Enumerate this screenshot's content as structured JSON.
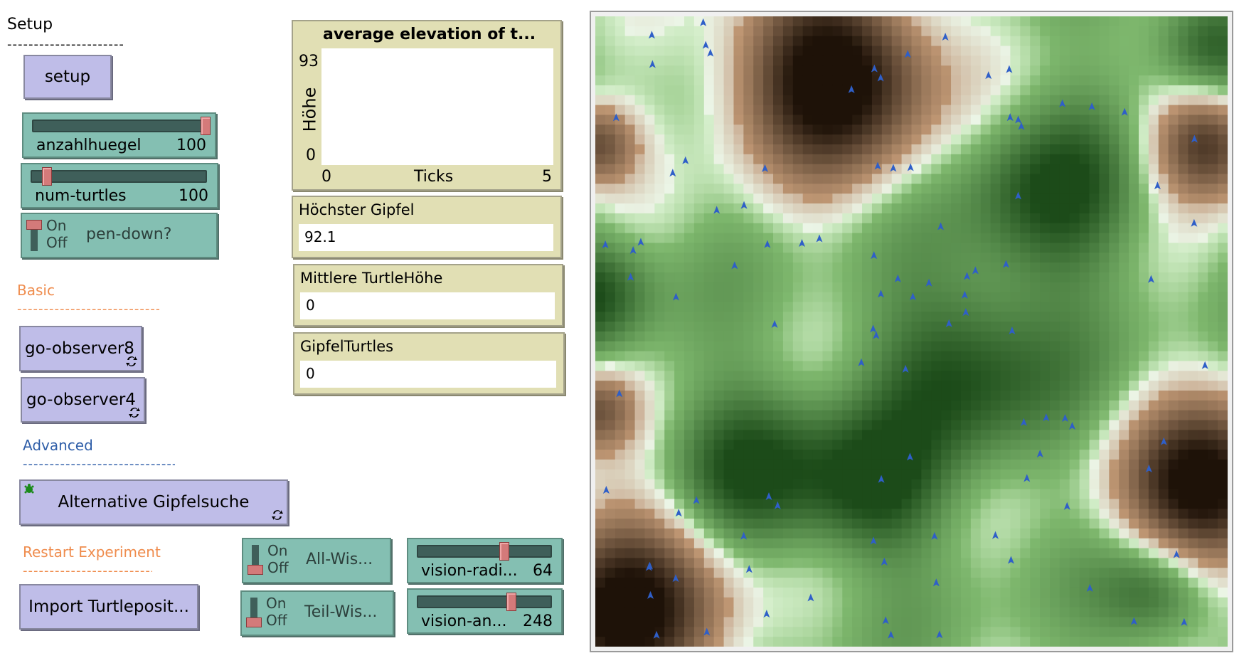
{
  "notes": {
    "setup": "Setup",
    "setup_rule": "----------------------",
    "basic": "Basic",
    "basic_rule": "----------------------------",
    "advanced": "Advanced",
    "advanced_rule": "------------------------------",
    "restart": "Restart Experiment",
    "restart_rule": "-------------------------"
  },
  "note_colors": {
    "basic": "#ef8c4d",
    "advanced": "#2f5ea8",
    "restart": "#ef8c4d"
  },
  "buttons": {
    "setup": "setup",
    "go_observer8": "go-observer8",
    "go_observer4": "go-observer4",
    "alt_gipfelsuche": "Alternative Gipfelsuche",
    "import_turtles": "Import Turtleposit..."
  },
  "sliders": {
    "anzahlhuegel": {
      "name": "anzahlhuegel",
      "value": "100",
      "level": 1.0
    },
    "num_turtles": {
      "name": "num-turtles",
      "value": "100",
      "level": 0.05
    },
    "vision_radius": {
      "name": "vision-radi...",
      "value": "64",
      "level": 0.64
    },
    "vision_angle": {
      "name": "vision-an...",
      "value": "248",
      "level": 0.69
    }
  },
  "switches": {
    "pen_down": {
      "on": "On",
      "off": "Off",
      "name": "pen-down?",
      "state": "on"
    },
    "all_wissen": {
      "on": "On",
      "off": "Off",
      "name": "All-Wis...",
      "state": "off"
    },
    "teil_wissen": {
      "on": "On",
      "off": "Off",
      "name": "Teil-Wis...",
      "state": "off"
    }
  },
  "plot": {
    "title": "average elevation of t...",
    "ylabel": "Höhe",
    "xlabel": "Ticks",
    "ymax": "93",
    "ymin": "0",
    "xmin": "0",
    "xmax": "5"
  },
  "monitors": {
    "hoechster_gipfel": {
      "label": "Höchster Gipfel",
      "value": "92.1"
    },
    "mittlere_hoehe": {
      "label": "Mittlere TurtleHöhe",
      "value": "0"
    },
    "gipfel_turtles": {
      "label": "GipfelTurtles",
      "value": "0"
    }
  },
  "view": {
    "terrain": "green-brown elevation map",
    "turtle_color": "#2f5fc8",
    "valley_color": "#2c7a2a",
    "peak_color": "#2a1a0a"
  }
}
